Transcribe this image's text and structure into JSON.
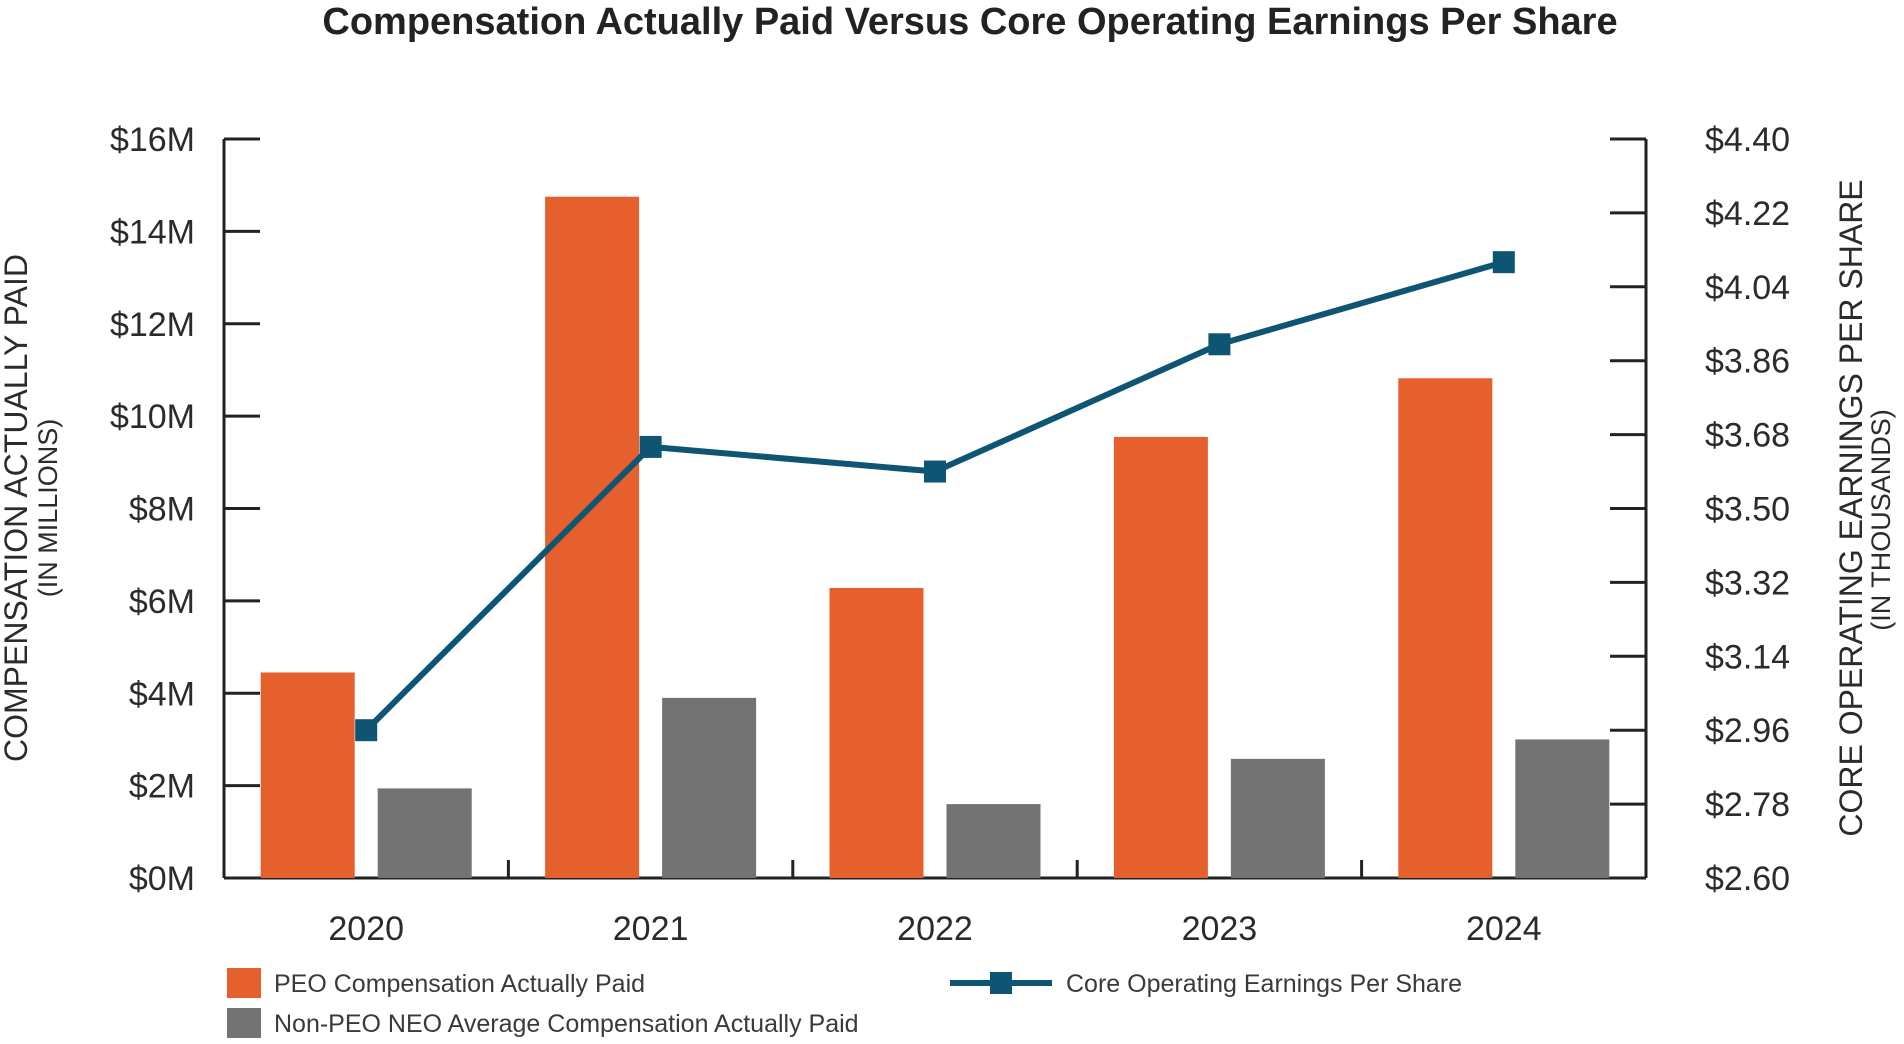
{
  "chart_data": {
    "type": "bar",
    "title": "Compensation Actually Paid Versus Core Operating Earnings Per Share",
    "categories": [
      "2020",
      "2021",
      "2022",
      "2023",
      "2024"
    ],
    "series": [
      {
        "name": "PEO Compensation Actually Paid",
        "type": "bar",
        "axis": "left",
        "color": "#E5602C",
        "values": [
          4.45,
          14.75,
          6.28,
          9.55,
          10.82
        ]
      },
      {
        "name": "Non-PEO NEO Average Compensation Actually Paid",
        "type": "bar",
        "axis": "left",
        "color": "#737373",
        "values": [
          1.94,
          3.9,
          1.6,
          2.58,
          3.0
        ]
      },
      {
        "name": "Core Operating Earnings Per Share",
        "type": "line",
        "axis": "right",
        "color": "#0E5573",
        "values": [
          2.96,
          3.65,
          3.59,
          3.9,
          4.1
        ]
      }
    ],
    "y_left": {
      "label": "COMPENSATION ACTUALLY PAID",
      "sublabel": "(IN MILLIONS)",
      "range": [
        0,
        16
      ],
      "ticks": [
        0,
        2,
        4,
        6,
        8,
        10,
        12,
        14,
        16
      ],
      "tick_labels": [
        "$0M",
        "$2M",
        "$4M",
        "$6M",
        "$8M",
        "$10M",
        "$12M",
        "$14M",
        "$16M"
      ]
    },
    "y_right": {
      "label": "CORE OPERATING EARNINGS PER SHARE",
      "sublabel": "(IN THOUSANDS)",
      "range": [
        2.6,
        4.4
      ],
      "ticks": [
        2.6,
        2.78,
        2.96,
        3.14,
        3.32,
        3.5,
        3.68,
        3.86,
        4.04,
        4.22,
        4.4
      ],
      "tick_labels": [
        "$2.60",
        "$2.78",
        "$2.96",
        "$3.14",
        "$3.32",
        "$3.50",
        "$3.68",
        "$3.86",
        "$4.04",
        "$4.22",
        "$4.40"
      ]
    },
    "grid": false,
    "legend_position": "bottom"
  }
}
